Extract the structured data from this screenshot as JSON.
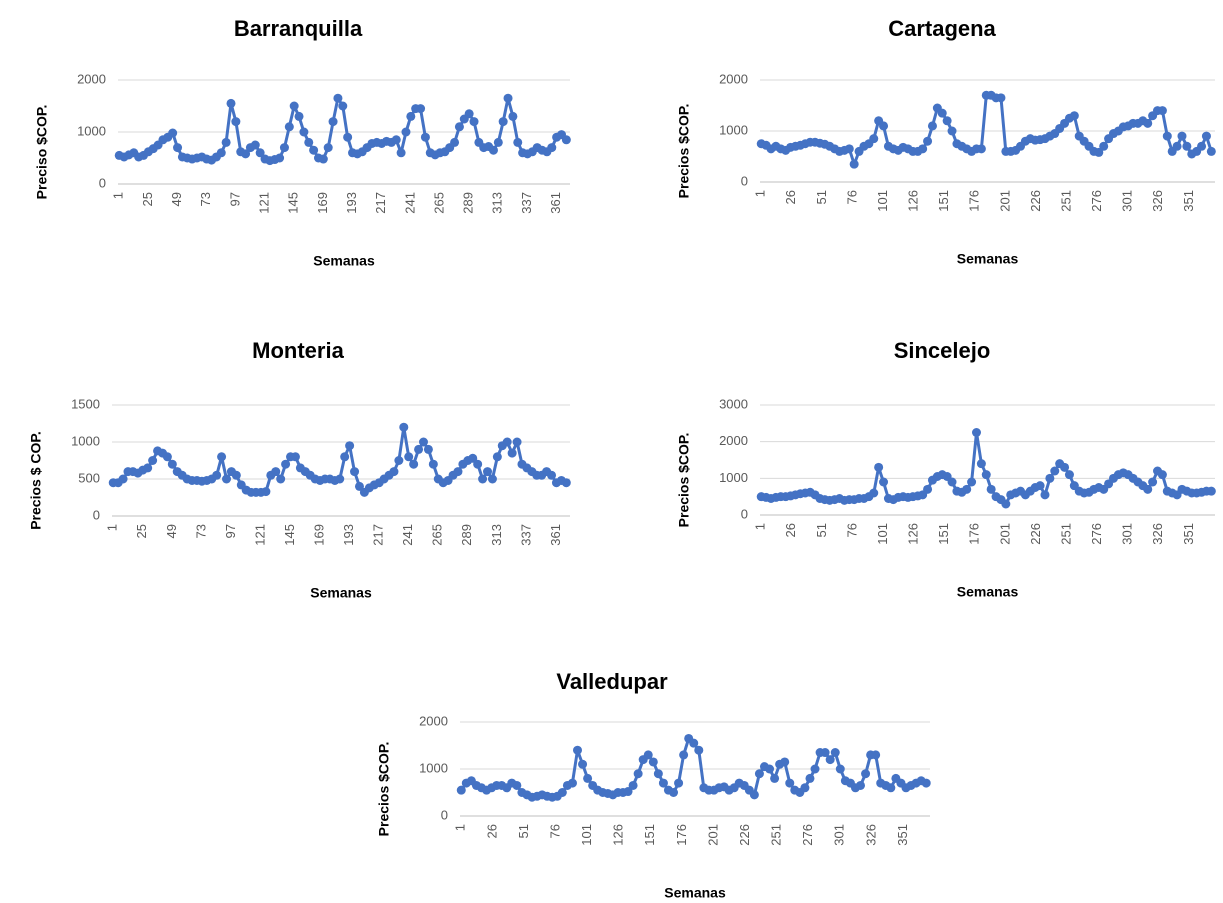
{
  "chart_data": [
    {
      "type": "line",
      "title": "Barranquilla",
      "x_label": "Semanas",
      "y_label": "Preciso $COP.",
      "color": "#4472c4",
      "grid": true,
      "xlim": [
        0,
        372
      ],
      "xticks": [
        1,
        25,
        49,
        73,
        97,
        121,
        145,
        169,
        193,
        217,
        241,
        265,
        289,
        313,
        337,
        361
      ],
      "ylim": [
        0,
        2000
      ],
      "yticks": [
        0,
        1000,
        2000
      ],
      "x": [
        1,
        5,
        9,
        13,
        17,
        21,
        25,
        29,
        33,
        37,
        41,
        45,
        49,
        53,
        57,
        61,
        65,
        69,
        73,
        77,
        81,
        85,
        89,
        93,
        97,
        101,
        105,
        109,
        113,
        117,
        121,
        125,
        129,
        133,
        137,
        141,
        145,
        149,
        153,
        157,
        161,
        165,
        169,
        173,
        177,
        181,
        185,
        189,
        193,
        197,
        201,
        205,
        209,
        213,
        217,
        221,
        225,
        229,
        233,
        237,
        241,
        245,
        249,
        253,
        257,
        261,
        265,
        269,
        273,
        277,
        281,
        285,
        289,
        293,
        297,
        301,
        305,
        309,
        313,
        317,
        321,
        325,
        329,
        333,
        337,
        341,
        345,
        349,
        353,
        357,
        361,
        365,
        369
      ],
      "values": [
        550,
        520,
        560,
        600,
        520,
        550,
        620,
        680,
        750,
        850,
        900,
        980,
        700,
        520,
        500,
        480,
        500,
        520,
        480,
        460,
        520,
        600,
        800,
        1550,
        1200,
        620,
        580,
        700,
        750,
        600,
        480,
        450,
        470,
        500,
        700,
        1100,
        1500,
        1300,
        1000,
        800,
        650,
        500,
        480,
        700,
        1200,
        1650,
        1500,
        900,
        600,
        580,
        620,
        700,
        780,
        800,
        780,
        820,
        800,
        850,
        600,
        1000,
        1300,
        1450,
        1450,
        900,
        600,
        560,
        600,
        620,
        700,
        800,
        1100,
        1250,
        1350,
        1200,
        800,
        700,
        720,
        650,
        800,
        1200,
        1650,
        1300,
        800,
        600,
        580,
        620,
        700,
        650,
        620,
        700,
        900,
        950,
        850
      ]
    },
    {
      "type": "line",
      "title": "Cartagena",
      "x_label": "Semanas",
      "y_label": "Precios $COP.",
      "color": "#4472c4",
      "grid": true,
      "xlim": [
        0,
        372
      ],
      "xticks": [
        1,
        26,
        51,
        76,
        101,
        126,
        151,
        176,
        201,
        226,
        251,
        276,
        301,
        326,
        351
      ],
      "ylim": [
        0,
        2000
      ],
      "yticks": [
        0,
        1000,
        2000
      ],
      "x": [
        1,
        5,
        9,
        13,
        17,
        21,
        25,
        29,
        33,
        37,
        41,
        45,
        49,
        53,
        57,
        61,
        65,
        69,
        73,
        77,
        81,
        85,
        89,
        93,
        97,
        101,
        105,
        109,
        113,
        117,
        121,
        125,
        129,
        133,
        137,
        141,
        145,
        149,
        153,
        157,
        161,
        165,
        169,
        173,
        177,
        181,
        185,
        189,
        193,
        197,
        201,
        205,
        209,
        213,
        217,
        221,
        225,
        229,
        233,
        237,
        241,
        245,
        249,
        253,
        257,
        261,
        265,
        269,
        273,
        277,
        281,
        285,
        289,
        293,
        297,
        301,
        305,
        309,
        313,
        317,
        321,
        325,
        329,
        333,
        337,
        341,
        345,
        349,
        353,
        357,
        361,
        365,
        369
      ],
      "values": [
        750,
        720,
        650,
        700,
        650,
        620,
        680,
        700,
        720,
        750,
        780,
        780,
        760,
        740,
        700,
        650,
        600,
        620,
        650,
        350,
        600,
        700,
        750,
        850,
        1200,
        1100,
        700,
        650,
        620,
        680,
        650,
        600,
        600,
        650,
        800,
        1100,
        1450,
        1350,
        1200,
        1000,
        750,
        700,
        650,
        600,
        650,
        650,
        1700,
        1700,
        1650,
        1650,
        600,
        600,
        620,
        700,
        800,
        850,
        820,
        830,
        850,
        900,
        950,
        1050,
        1150,
        1250,
        1300,
        900,
        800,
        700,
        600,
        580,
        700,
        850,
        950,
        1000,
        1080,
        1100,
        1150,
        1150,
        1200,
        1150,
        1300,
        1400,
        1400,
        900,
        600,
        700,
        900,
        700,
        550,
        600,
        700,
        900,
        600
      ]
    },
    {
      "type": "line",
      "title": "Monteria",
      "x_label": "Semanas",
      "y_label": "Precios $ COP.",
      "color": "#4472c4",
      "grid": true,
      "xlim": [
        0,
        372
      ],
      "xticks": [
        1,
        25,
        49,
        73,
        97,
        121,
        145,
        169,
        193,
        217,
        241,
        265,
        289,
        313,
        337,
        361
      ],
      "ylim": [
        0,
        1500
      ],
      "yticks": [
        0,
        500,
        1000,
        1500
      ],
      "x": [
        1,
        5,
        9,
        13,
        17,
        21,
        25,
        29,
        33,
        37,
        41,
        45,
        49,
        53,
        57,
        61,
        65,
        69,
        73,
        77,
        81,
        85,
        89,
        93,
        97,
        101,
        105,
        109,
        113,
        117,
        121,
        125,
        129,
        133,
        137,
        141,
        145,
        149,
        153,
        157,
        161,
        165,
        169,
        173,
        177,
        181,
        185,
        189,
        193,
        197,
        201,
        205,
        209,
        213,
        217,
        221,
        225,
        229,
        233,
        237,
        241,
        245,
        249,
        253,
        257,
        261,
        265,
        269,
        273,
        277,
        281,
        285,
        289,
        293,
        297,
        301,
        305,
        309,
        313,
        317,
        321,
        325,
        329,
        333,
        337,
        341,
        345,
        349,
        353,
        357,
        361,
        365,
        369
      ],
      "values": [
        450,
        450,
        500,
        600,
        600,
        580,
        620,
        650,
        750,
        880,
        850,
        800,
        700,
        600,
        550,
        500,
        480,
        480,
        470,
        480,
        500,
        550,
        800,
        500,
        600,
        550,
        420,
        350,
        320,
        320,
        320,
        330,
        550,
        600,
        500,
        700,
        800,
        800,
        650,
        600,
        550,
        500,
        480,
        500,
        500,
        480,
        500,
        800,
        950,
        600,
        400,
        320,
        380,
        420,
        450,
        500,
        550,
        600,
        750,
        1200,
        800,
        700,
        900,
        1000,
        900,
        700,
        500,
        450,
        480,
        550,
        600,
        700,
        750,
        780,
        700,
        500,
        600,
        500,
        800,
        950,
        1000,
        850,
        1000,
        700,
        650,
        600,
        550,
        550,
        600,
        550,
        450,
        480,
        450
      ]
    },
    {
      "type": "line",
      "title": "Sincelejo",
      "x_label": "Semanas",
      "y_label": "Precios $COP.",
      "color": "#4472c4",
      "grid": true,
      "xlim": [
        0,
        372
      ],
      "xticks": [
        1,
        26,
        51,
        76,
        101,
        126,
        151,
        176,
        201,
        226,
        251,
        276,
        301,
        326,
        351
      ],
      "ylim": [
        0,
        3000
      ],
      "yticks": [
        0,
        1000,
        2000,
        3000
      ],
      "x": [
        1,
        5,
        9,
        13,
        17,
        21,
        25,
        29,
        33,
        37,
        41,
        45,
        49,
        53,
        57,
        61,
        65,
        69,
        73,
        77,
        81,
        85,
        89,
        93,
        97,
        101,
        105,
        109,
        113,
        117,
        121,
        125,
        129,
        133,
        137,
        141,
        145,
        149,
        153,
        157,
        161,
        165,
        169,
        173,
        177,
        181,
        185,
        189,
        193,
        197,
        201,
        205,
        209,
        213,
        217,
        221,
        225,
        229,
        233,
        237,
        241,
        245,
        249,
        253,
        257,
        261,
        265,
        269,
        273,
        277,
        281,
        285,
        289,
        293,
        297,
        301,
        305,
        309,
        313,
        317,
        321,
        325,
        329,
        333,
        337,
        341,
        345,
        349,
        353,
        357,
        361,
        365,
        369
      ],
      "values": [
        500,
        480,
        450,
        480,
        500,
        500,
        520,
        550,
        580,
        600,
        620,
        550,
        450,
        420,
        400,
        420,
        450,
        400,
        420,
        420,
        450,
        450,
        500,
        600,
        1300,
        900,
        450,
        420,
        480,
        500,
        480,
        500,
        520,
        550,
        700,
        950,
        1050,
        1100,
        1050,
        900,
        650,
        620,
        700,
        900,
        2250,
        1400,
        1100,
        700,
        500,
        420,
        300,
        550,
        600,
        650,
        550,
        650,
        750,
        800,
        550,
        1000,
        1200,
        1400,
        1300,
        1100,
        800,
        650,
        600,
        620,
        700,
        750,
        700,
        850,
        1000,
        1100,
        1150,
        1100,
        1000,
        900,
        800,
        700,
        900,
        1200,
        1100,
        650,
        600,
        550,
        700,
        650,
        600,
        600,
        620,
        650,
        650
      ]
    },
    {
      "type": "line",
      "title": "Valledupar",
      "x_label": "Semanas",
      "y_label": "Precios $COP.",
      "color": "#4472c4",
      "grid": true,
      "xlim": [
        0,
        372
      ],
      "xticks": [
        1,
        26,
        51,
        76,
        101,
        126,
        151,
        176,
        201,
        226,
        251,
        276,
        301,
        326,
        351
      ],
      "ylim": [
        0,
        2000
      ],
      "yticks": [
        0,
        1000,
        2000
      ],
      "x": [
        1,
        5,
        9,
        13,
        17,
        21,
        25,
        29,
        33,
        37,
        41,
        45,
        49,
        53,
        57,
        61,
        65,
        69,
        73,
        77,
        81,
        85,
        89,
        93,
        97,
        101,
        105,
        109,
        113,
        117,
        121,
        125,
        129,
        133,
        137,
        141,
        145,
        149,
        153,
        157,
        161,
        165,
        169,
        173,
        177,
        181,
        185,
        189,
        193,
        197,
        201,
        205,
        209,
        213,
        217,
        221,
        225,
        229,
        233,
        237,
        241,
        245,
        249,
        253,
        257,
        261,
        265,
        269,
        273,
        277,
        281,
        285,
        289,
        293,
        297,
        301,
        305,
        309,
        313,
        317,
        321,
        325,
        329,
        333,
        337,
        341,
        345,
        349,
        353,
        357,
        361,
        365,
        369
      ],
      "values": [
        550,
        700,
        750,
        650,
        600,
        550,
        600,
        650,
        650,
        600,
        700,
        650,
        500,
        450,
        400,
        420,
        450,
        420,
        400,
        420,
        500,
        650,
        700,
        1400,
        1100,
        800,
        650,
        550,
        500,
        480,
        450,
        500,
        500,
        520,
        650,
        900,
        1200,
        1300,
        1150,
        900,
        700,
        550,
        500,
        700,
        1300,
        1650,
        1550,
        1400,
        600,
        550,
        550,
        600,
        620,
        550,
        600,
        700,
        650,
        550,
        450,
        900,
        1050,
        1000,
        800,
        1100,
        1150,
        700,
        550,
        500,
        600,
        800,
        1000,
        1350,
        1350,
        1200,
        1350,
        1000,
        750,
        700,
        600,
        650,
        900,
        1300,
        1300,
        700,
        650,
        600,
        800,
        700,
        600,
        650,
        700,
        750,
        700
      ]
    }
  ]
}
